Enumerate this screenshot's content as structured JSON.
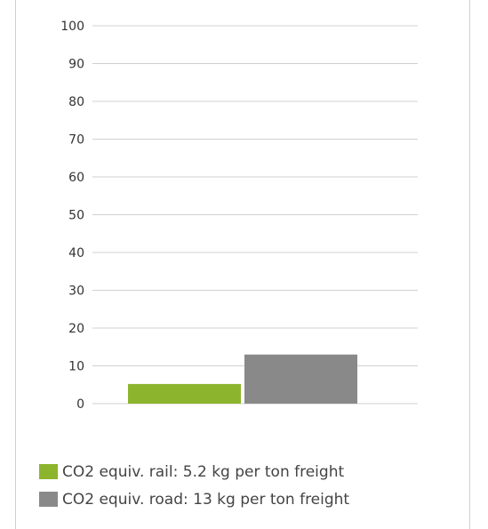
{
  "chart_data": {
    "type": "bar",
    "categories": [
      "rail",
      "road"
    ],
    "values": [
      5.2,
      13
    ],
    "colors": [
      "#8db42d",
      "#898989"
    ],
    "ylim": [
      0,
      100
    ],
    "yticks": [
      0,
      10,
      20,
      30,
      40,
      50,
      60,
      70,
      80,
      90,
      100
    ],
    "yticks_labels": [
      "0",
      "10",
      "20",
      "30",
      "40",
      "50",
      "60",
      "70",
      "80",
      "90",
      "100"
    ],
    "grid": true,
    "legend_position": "bottom",
    "legend": [
      {
        "label": "CO2 equiv. rail: 5.2 kg per ton freight",
        "color": "#8db42d"
      },
      {
        "label": "CO2 equiv. road: 13 kg per ton freight",
        "color": "#898989"
      }
    ],
    "title": "",
    "xlabel": "",
    "ylabel": ""
  }
}
